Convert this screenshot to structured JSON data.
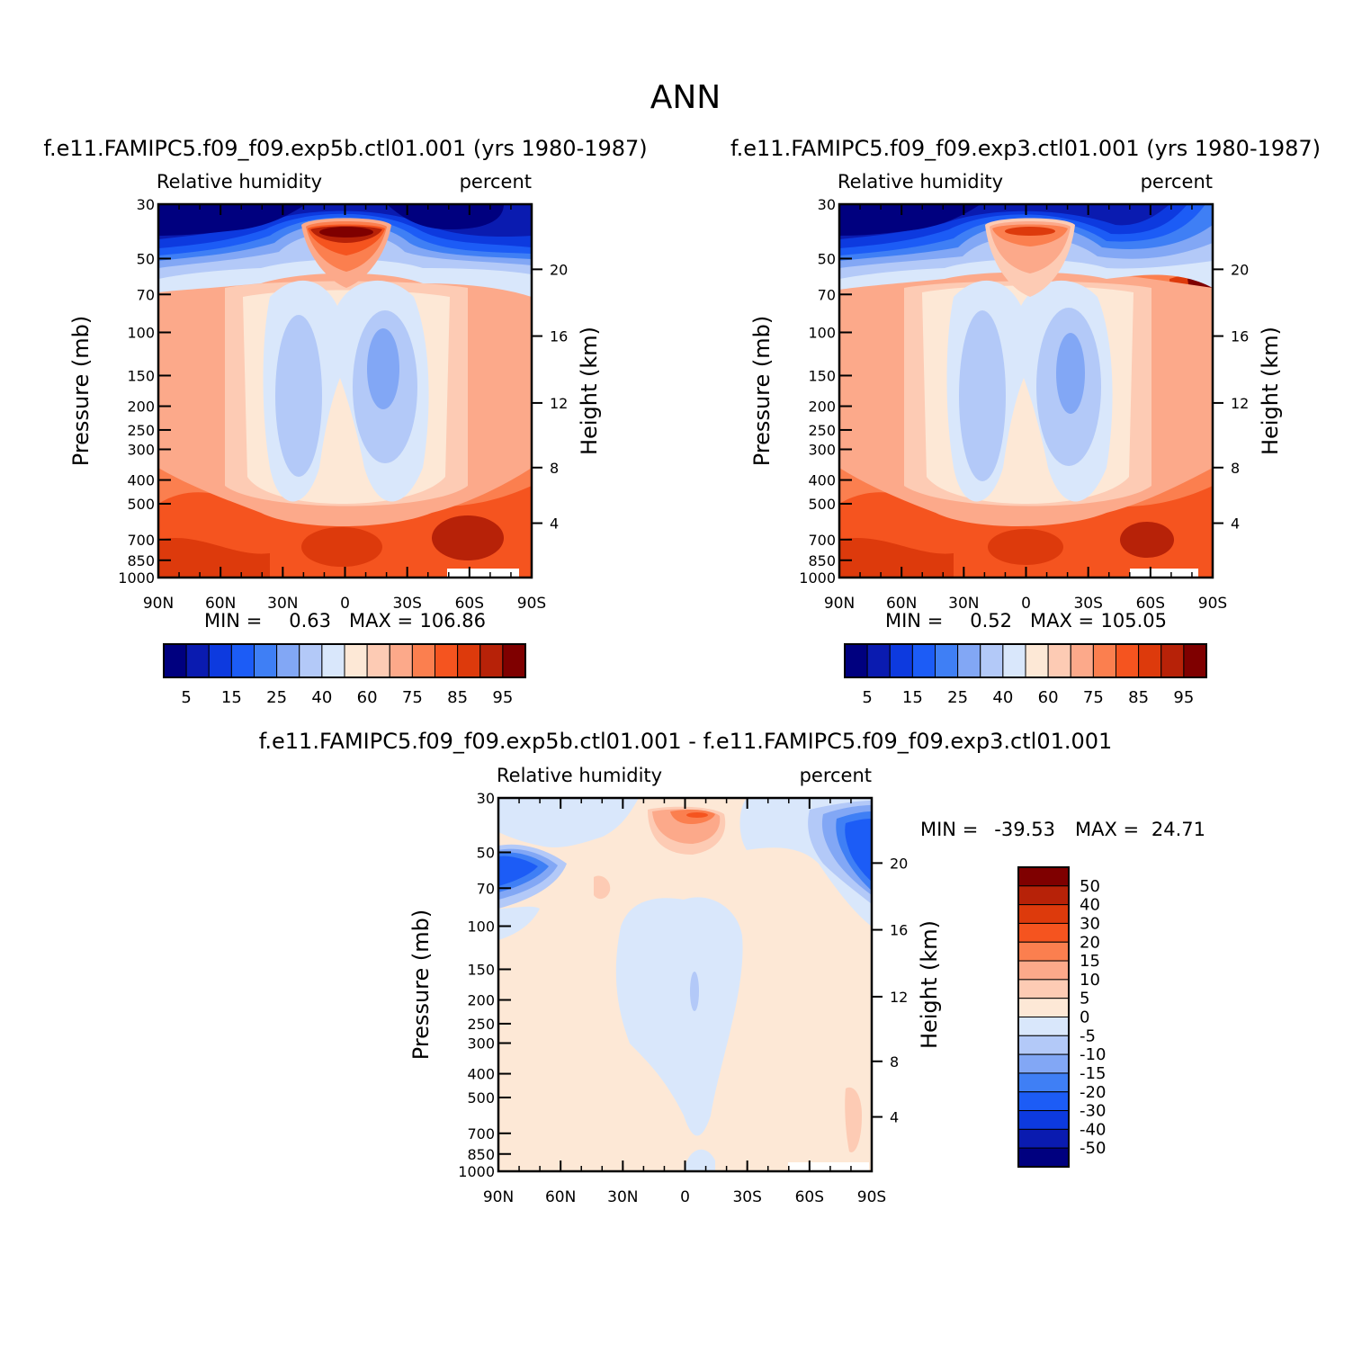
{
  "main_title": "ANN",
  "colors": {
    "rh_levels": [
      "#00007f",
      "#0a1bb0",
      "#0d3adf",
      "#1c5cf6",
      "#3f7ff5",
      "#82a7f5",
      "#b3c9f8",
      "#d9e7fb",
      "#fde8d6",
      "#fdcbb4",
      "#fca98a",
      "#fb7f4f",
      "#f5541f",
      "#dd3a0c",
      "#b72208",
      "#7f0000"
    ],
    "diff_levels": [
      "#00007f",
      "#0a1bb0",
      "#0d3adf",
      "#1c5cf6",
      "#3f7ff5",
      "#82a7f5",
      "#b3c9f8",
      "#d9e7fb",
      "#fde8d6",
      "#fdcbb4",
      "#fca98a",
      "#fb7f4f",
      "#f5541f",
      "#dd3a0c",
      "#b72208",
      "#7f0000"
    ]
  },
  "chart_data": [
    {
      "type": "heatmap",
      "id": "panel1",
      "title": "f.e11.FAMIPC5.f09_f09.exp5b.ctl01.001 (yrs 1980-1987)",
      "left_label": "Relative humidity",
      "right_label": "percent",
      "ylabel": "Pressure (mb)",
      "ylabel_right": "Height (km)",
      "x_ticks": [
        "90N",
        "60N",
        "30N",
        "0",
        "30S",
        "60S",
        "90S"
      ],
      "y_ticks": [
        "30",
        "50",
        "70",
        "100",
        "150",
        "200",
        "250",
        "300",
        "400",
        "500",
        "700",
        "850",
        "1000"
      ],
      "y_ticks_right": [
        "20",
        "16",
        "12",
        "8",
        "4"
      ],
      "xlim": [
        90,
        -90
      ],
      "ylim": [
        1000,
        30
      ],
      "y_scale": "log",
      "stats": {
        "min_label": "MIN =",
        "min": "0.63",
        "max_label": "MAX =",
        "max": "106.86"
      },
      "colorbar_labels": [
        "5",
        "15",
        "25",
        "40",
        "60",
        "75",
        "85",
        "95"
      ]
    },
    {
      "type": "heatmap",
      "id": "panel2",
      "title": "f.e11.FAMIPC5.f09_f09.exp3.ctl01.001 (yrs 1980-1987)",
      "left_label": "Relative humidity",
      "right_label": "percent",
      "ylabel": "Pressure (mb)",
      "ylabel_right": "Height (km)",
      "x_ticks": [
        "90N",
        "60N",
        "30N",
        "0",
        "30S",
        "60S",
        "90S"
      ],
      "y_ticks": [
        "30",
        "50",
        "70",
        "100",
        "150",
        "200",
        "250",
        "300",
        "400",
        "500",
        "700",
        "850",
        "1000"
      ],
      "y_ticks_right": [
        "20",
        "16",
        "12",
        "8",
        "4"
      ],
      "xlim": [
        90,
        -90
      ],
      "ylim": [
        1000,
        30
      ],
      "y_scale": "log",
      "stats": {
        "min_label": "MIN =",
        "min": "0.52",
        "max_label": "MAX =",
        "max": "105.05"
      },
      "colorbar_labels": [
        "5",
        "15",
        "25",
        "40",
        "60",
        "75",
        "85",
        "95"
      ]
    },
    {
      "type": "heatmap",
      "id": "panel3",
      "title": "f.e11.FAMIPC5.f09_f09.exp5b.ctl01.001 - f.e11.FAMIPC5.f09_f09.exp3.ctl01.001",
      "left_label": "Relative humidity",
      "right_label": "percent",
      "ylabel": "Pressure (mb)",
      "ylabel_right": "Height (km)",
      "x_ticks": [
        "90N",
        "60N",
        "30N",
        "0",
        "30S",
        "60S",
        "90S"
      ],
      "y_ticks": [
        "30",
        "50",
        "70",
        "100",
        "150",
        "200",
        "250",
        "300",
        "400",
        "500",
        "700",
        "850",
        "1000"
      ],
      "y_ticks_right": [
        "20",
        "16",
        "12",
        "8",
        "4"
      ],
      "xlim": [
        90,
        -90
      ],
      "ylim": [
        1000,
        30
      ],
      "y_scale": "log",
      "stats": {
        "min_label": "MIN =",
        "min": "-39.53",
        "max_label": "MAX =",
        "max": "24.71"
      },
      "colorbar_labels": [
        "50",
        "40",
        "30",
        "20",
        "15",
        "10",
        "5",
        "0",
        "-5",
        "-10",
        "-15",
        "-20",
        "-30",
        "-40",
        "-50"
      ]
    }
  ]
}
